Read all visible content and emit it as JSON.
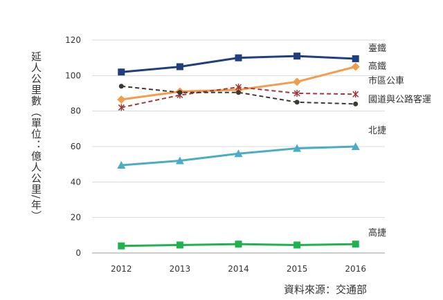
{
  "chart_data": {
    "type": "line",
    "title": "",
    "xlabel": "",
    "ylabel": "延人公里數（單位：億人公里/年）",
    "categories": [
      "2012",
      "2013",
      "2014",
      "2015",
      "2016"
    ],
    "ylim": [
      0,
      120
    ],
    "yticks": [
      "0",
      "20",
      "40",
      "60",
      "80",
      "100",
      "120"
    ],
    "grid": true,
    "legend_placement": "right",
    "series": [
      {
        "name": "臺鐵",
        "values": [
          102,
          105,
          110,
          111,
          109.5
        ],
        "color": "#1f3f7f",
        "marker": "square",
        "dash": "solid"
      },
      {
        "name": "高鐵",
        "values": [
          86.5,
          91,
          92,
          96.5,
          105
        ],
        "color": "#f59b4c",
        "marker": "diamond",
        "dash": "solid"
      },
      {
        "name": "市區公車",
        "values": [
          82,
          89,
          93.5,
          90,
          89.5
        ],
        "color": "#a0383a",
        "marker": "star",
        "dash": "dashed"
      },
      {
        "name": "國道與公路客運",
        "values": [
          94,
          90.5,
          90.5,
          85,
          84
        ],
        "color": "#3a3a32",
        "marker": "circle",
        "dash": "dashed"
      },
      {
        "name": "北捷",
        "values": [
          49.5,
          52,
          56,
          59,
          60
        ],
        "color": "#4bacc6",
        "marker": "triangle",
        "dash": "solid"
      },
      {
        "name": "高捷",
        "values": [
          4,
          4.5,
          5,
          4.5,
          5
        ],
        "color": "#1fb24f",
        "marker": "square",
        "dash": "solid"
      }
    ]
  },
  "source_note": "資料來源：交通部"
}
